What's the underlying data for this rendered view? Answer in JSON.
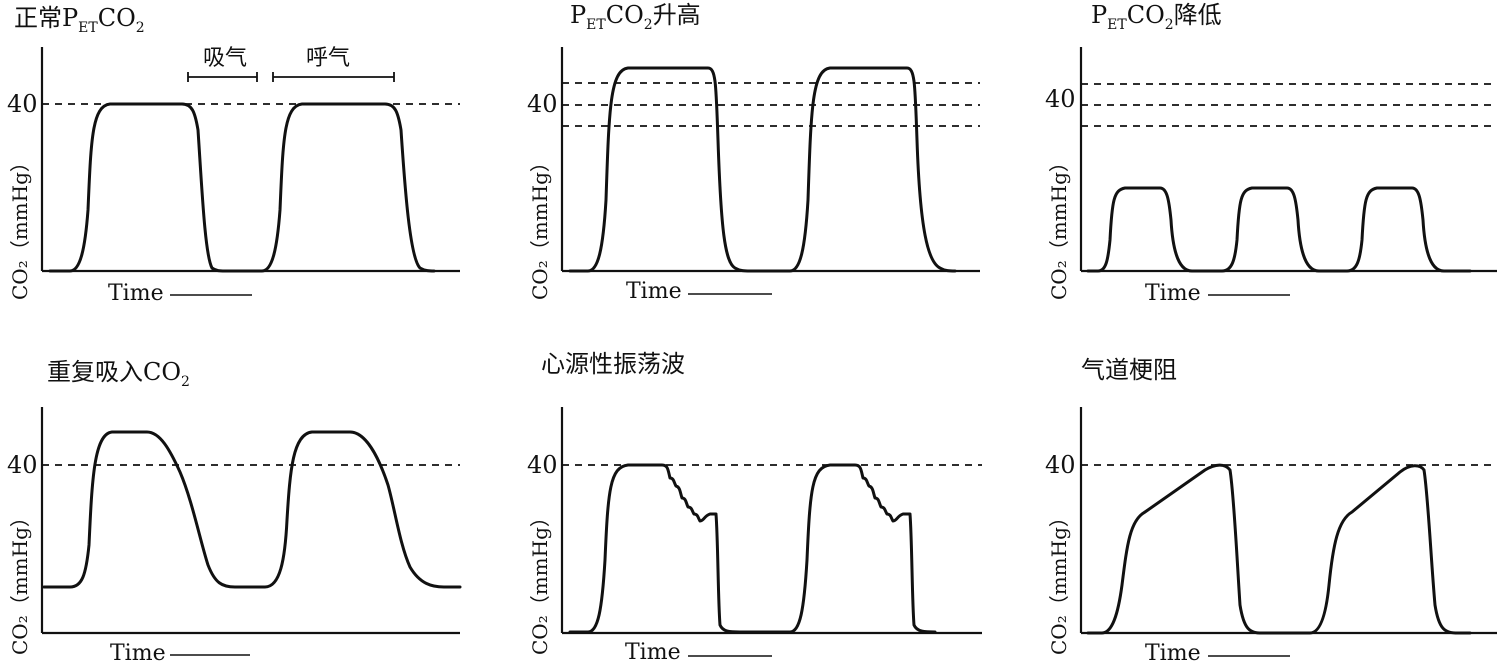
{
  "chart_data": [
    {
      "type": "line",
      "title": "正常P",
      "title_sub": "ET",
      "title_tail": "CO",
      "title_sub2": "2",
      "title_tail2": "",
      "xlabel": "Time",
      "ylabel": "CO₂（mmHg）",
      "ytick": "40",
      "ylim": [
        0,
        56
      ],
      "reference_lines": [
        40
      ],
      "phase_labels": [
        "吸气",
        "呼气"
      ],
      "series": [
        {
          "x": [
            0,
            0.3,
            0.6,
            0.9,
            1.1,
            1.4,
            1.6,
            1.8,
            2.0,
            2.2,
            2.6,
            2.8,
            3.0,
            3.3,
            3.5,
            3.8,
            4.0,
            4.2,
            4.4,
            4.6,
            4.9,
            5.1
          ],
          "values": [
            0,
            0,
            4,
            30,
            38.5,
            40,
            40,
            40,
            38,
            8,
            0,
            0,
            0,
            4,
            30,
            38.5,
            40,
            40,
            40,
            38,
            8,
            0
          ]
        }
      ]
    },
    {
      "type": "line",
      "title": "P",
      "title_sub": "ET",
      "title_tail": "CO",
      "title_sub2": "2",
      "title_tail2": "升高",
      "xlabel": "Time",
      "ylabel": "CO₂（mmHg）",
      "ytick": "40",
      "ylim": [
        0,
        56
      ],
      "reference_lines": [
        45,
        40,
        35
      ],
      "phase_labels": [],
      "series": [
        {
          "x": [
            0,
            0.3,
            0.55,
            0.8,
            1.0,
            1.6,
            1.9,
            2.1,
            2.4,
            2.7,
            3.0,
            3.3,
            3.55,
            3.8,
            4.0,
            4.6,
            4.9,
            5.1,
            5.4
          ],
          "values": [
            0,
            0,
            5,
            44,
            49,
            49,
            47,
            5,
            0,
            0,
            0,
            5,
            44,
            49,
            49,
            49,
            47,
            5,
            0
          ]
        }
      ]
    },
    {
      "type": "line",
      "title": "P",
      "title_sub": "ET",
      "title_tail": "CO",
      "title_sub2": "2",
      "title_tail2": "降低",
      "xlabel": "Time",
      "ylabel": "CO₂（mmHg）",
      "ytick": "40",
      "ylim": [
        0,
        56
      ],
      "reference_lines": [
        45,
        40,
        35
      ],
      "phase_labels": [],
      "series": [
        {
          "x": [
            0,
            0.2,
            0.4,
            0.65,
            1.0,
            1.2,
            1.45,
            1.7,
            1.95,
            2.2,
            2.45,
            2.7,
            2.95,
            3.2,
            3.45,
            3.7,
            3.95,
            4.2,
            4.45
          ],
          "values": [
            0,
            0,
            3,
            19,
            20,
            19,
            3,
            0,
            3,
            19,
            20,
            19,
            3,
            0,
            3,
            19,
            20,
            19,
            0
          ]
        }
      ]
    },
    {
      "type": "line",
      "title": "重复吸入CO",
      "title_sub": "",
      "title_tail": "",
      "title_sub2": "2",
      "title_tail2": "",
      "xlabel": "Time",
      "ylabel": "CO₂（mmHg）",
      "ytick": "40",
      "ylim": [
        0,
        56
      ],
      "reference_lines": [
        40
      ],
      "phase_labels": [],
      "series": [
        {
          "x": [
            0,
            0.4,
            0.7,
            0.9,
            1.1,
            1.4,
            1.8,
            2.3,
            2.6,
            3.0,
            3.3,
            3.6,
            3.9,
            4.2,
            4.4,
            4.7,
            5.1,
            5.6,
            5.9,
            6.2
          ],
          "values": [
            11,
            11,
            22,
            46,
            49,
            49,
            40,
            22,
            12,
            11,
            11,
            22,
            46,
            49,
            49,
            40,
            22,
            12,
            11,
            11
          ]
        }
      ]
    },
    {
      "type": "line",
      "title": "心源性振荡波",
      "title_sub": "",
      "title_tail": "",
      "title_sub2": "",
      "title_tail2": "",
      "xlabel": "Time",
      "ylabel": "CO₂（mmHg）",
      "ytick": "40",
      "ylim": [
        0,
        56
      ],
      "reference_lines": [
        40
      ],
      "phase_labels": [],
      "series": [
        {
          "x": [
            0,
            0.3,
            0.55,
            0.8,
            1.0,
            1.4,
            1.55,
            1.65,
            1.8,
            1.9,
            2.05,
            2.15,
            2.3,
            2.4,
            2.55,
            2.6,
            2.8,
            3.3,
            3.55,
            3.8,
            4.0,
            4.4,
            4.55,
            4.65,
            4.8,
            4.9,
            5.05,
            5.15,
            5.3,
            5.4,
            5.55,
            5.6,
            5.8
          ],
          "values": [
            0,
            0,
            5,
            36,
            40,
            40,
            38,
            36,
            36,
            33,
            33,
            31,
            31,
            29,
            29,
            3,
            0,
            0,
            5,
            36,
            40,
            40,
            38,
            36,
            36,
            33,
            33,
            31,
            31,
            29,
            29,
            3,
            0
          ]
        }
      ]
    },
    {
      "type": "line",
      "title": "气道梗阻",
      "title_sub": "",
      "title_tail": "",
      "title_sub2": "",
      "title_tail2": "",
      "xlabel": "Time",
      "ylabel": "CO₂（mmHg）",
      "ytick": "40",
      "ylim": [
        0,
        56
      ],
      "reference_lines": [
        40
      ],
      "phase_labels": [],
      "series": [
        {
          "x": [
            0,
            0.3,
            0.55,
            0.75,
            0.95,
            1.7,
            2.0,
            2.15,
            2.35,
            2.5,
            2.9,
            3.1,
            3.4,
            3.6,
            3.8,
            4.55,
            4.85,
            5.0,
            5.2,
            5.35,
            5.7
          ],
          "values": [
            0,
            0,
            5,
            26,
            29,
            39,
            40,
            37,
            5,
            0,
            0,
            0,
            5,
            26,
            29,
            39,
            40,
            37,
            5,
            0,
            0
          ]
        }
      ]
    }
  ]
}
